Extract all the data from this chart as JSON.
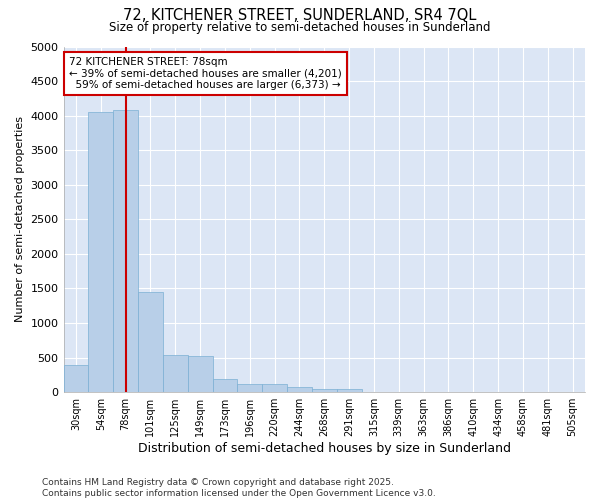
{
  "title": "72, KITCHENER STREET, SUNDERLAND, SR4 7QL",
  "subtitle": "Size of property relative to semi-detached houses in Sunderland",
  "xlabel": "Distribution of semi-detached houses by size in Sunderland",
  "ylabel": "Number of semi-detached properties",
  "property_label": "72 KITCHENER STREET: 78sqm",
  "pct_smaller": 39,
  "pct_larger": 59,
  "n_smaller": 4201,
  "n_larger": 6373,
  "bar_color": "#b8cfe8",
  "bar_edge_color": "#7aafd4",
  "highlight_color": "#cc0000",
  "bg_color": "#dce6f5",
  "annotation_box_color": "#cc0000",
  "categories": [
    "30sqm",
    "54sqm",
    "78sqm",
    "101sqm",
    "125sqm",
    "149sqm",
    "173sqm",
    "196sqm",
    "220sqm",
    "244sqm",
    "268sqm",
    "291sqm",
    "315sqm",
    "339sqm",
    "363sqm",
    "386sqm",
    "410sqm",
    "434sqm",
    "458sqm",
    "481sqm",
    "505sqm"
  ],
  "values": [
    400,
    4050,
    4080,
    1450,
    540,
    530,
    190,
    115,
    115,
    75,
    50,
    40,
    0,
    0,
    0,
    0,
    0,
    0,
    0,
    0,
    0
  ],
  "ylim": [
    0,
    5000
  ],
  "yticks": [
    0,
    500,
    1000,
    1500,
    2000,
    2500,
    3000,
    3500,
    4000,
    4500,
    5000
  ],
  "footer1": "Contains HM Land Registry data © Crown copyright and database right 2025.",
  "footer2": "Contains public sector information licensed under the Open Government Licence v3.0."
}
